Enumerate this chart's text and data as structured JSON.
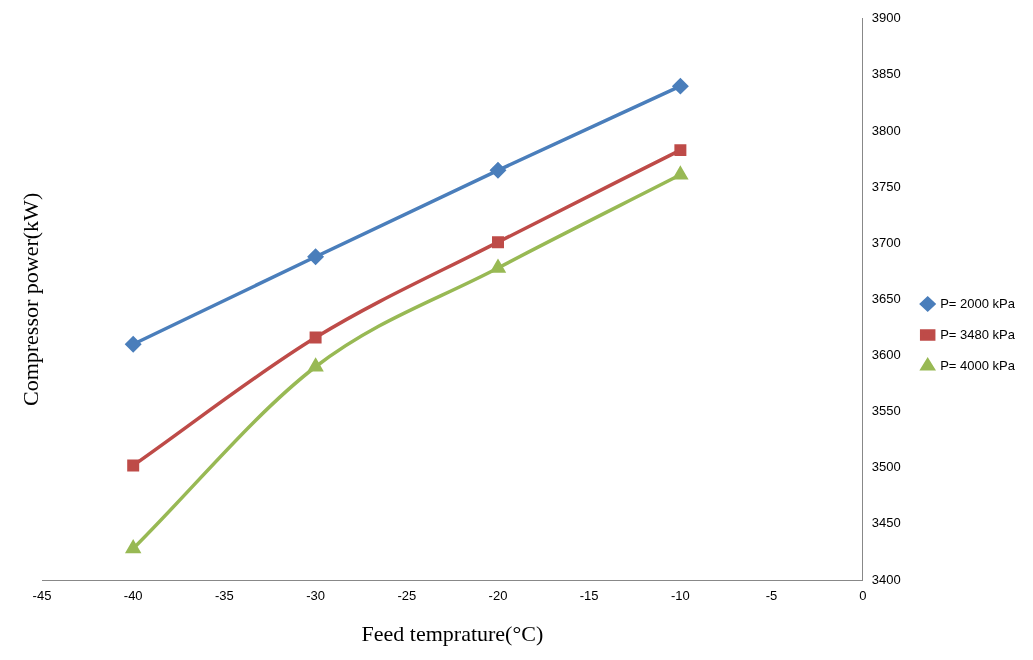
{
  "chart_data": {
    "type": "line",
    "xlabel": "Feed temprature(°C)",
    "ylabel": "Compressor power(kW)",
    "x": [
      -40,
      -30,
      -20,
      -10
    ],
    "series": [
      {
        "name": "P= 2000 kPa",
        "color": "#4a7ebb",
        "marker": "diamond",
        "values": [
          3610,
          3688,
          3765,
          3840
        ]
      },
      {
        "name": "P= 3480 kPa",
        "color": "#be4b48",
        "marker": "square",
        "values": [
          3502,
          3616,
          3701,
          3783
        ]
      },
      {
        "name": "P= 4000 kPa",
        "color": "#98b954",
        "marker": "triangle",
        "values": [
          3428,
          3590,
          3678,
          3761
        ]
      }
    ],
    "xlim": [
      -45,
      0
    ],
    "xticks": [
      -45,
      -40,
      -35,
      -30,
      -25,
      -20,
      -15,
      -10,
      -5,
      0
    ],
    "ylim": [
      3400,
      3900
    ],
    "yticks": [
      3400,
      3450,
      3500,
      3550,
      3600,
      3650,
      3700,
      3750,
      3800,
      3850,
      3900
    ],
    "grid": false,
    "legend": "right",
    "line_style": "solid"
  }
}
